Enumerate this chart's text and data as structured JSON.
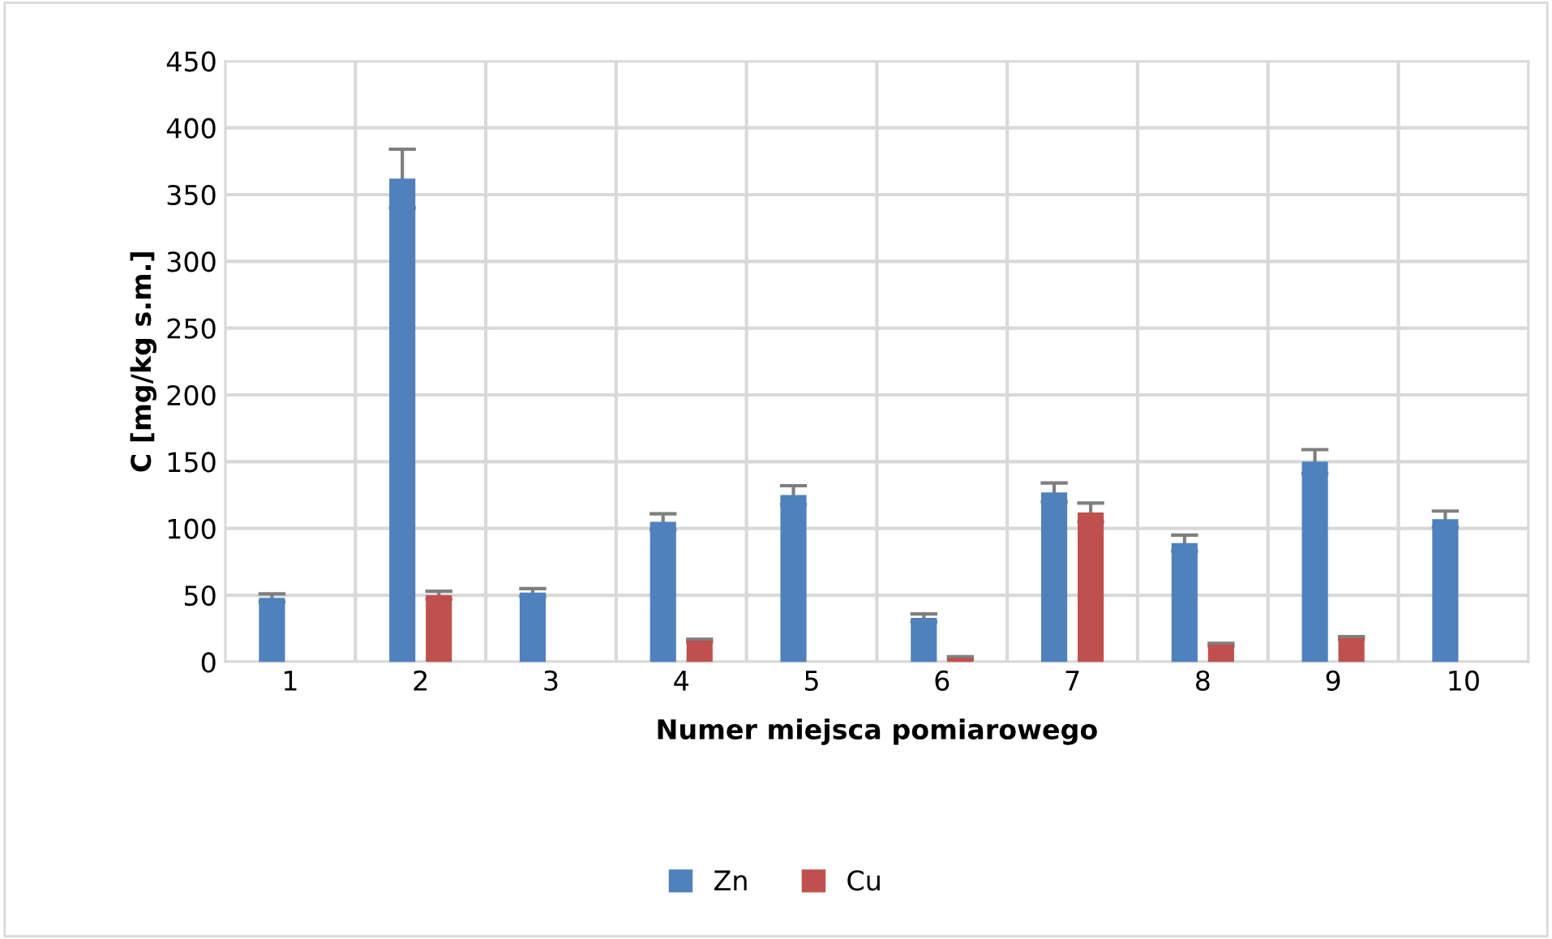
{
  "chart_data": {
    "type": "bar",
    "xlabel": "Numer miejsca pomiarowego",
    "ylabel": "C [mg/kg s.m.]",
    "categories": [
      "1",
      "2",
      "3",
      "4",
      "5",
      "6",
      "7",
      "8",
      "9",
      "10"
    ],
    "series": [
      {
        "name": "Zn",
        "color": "#4f81bd",
        "values": [
          48,
          362,
          52,
          105,
          125,
          33,
          127,
          89,
          150,
          107
        ],
        "errors": [
          3,
          22,
          3,
          6,
          7,
          3,
          7,
          6,
          9,
          6
        ]
      },
      {
        "name": "Cu",
        "color": "#c0504d",
        "values": [
          null,
          50,
          null,
          16,
          null,
          3,
          112,
          13,
          18,
          null
        ],
        "errors": [
          null,
          3,
          null,
          1,
          null,
          1,
          7,
          1,
          1,
          null
        ]
      }
    ],
    "ylim": [
      0,
      450
    ],
    "yticks": [
      0,
      50,
      100,
      150,
      200,
      250,
      300,
      350,
      400,
      450
    ],
    "grid": true,
    "legend": "bottom"
  }
}
